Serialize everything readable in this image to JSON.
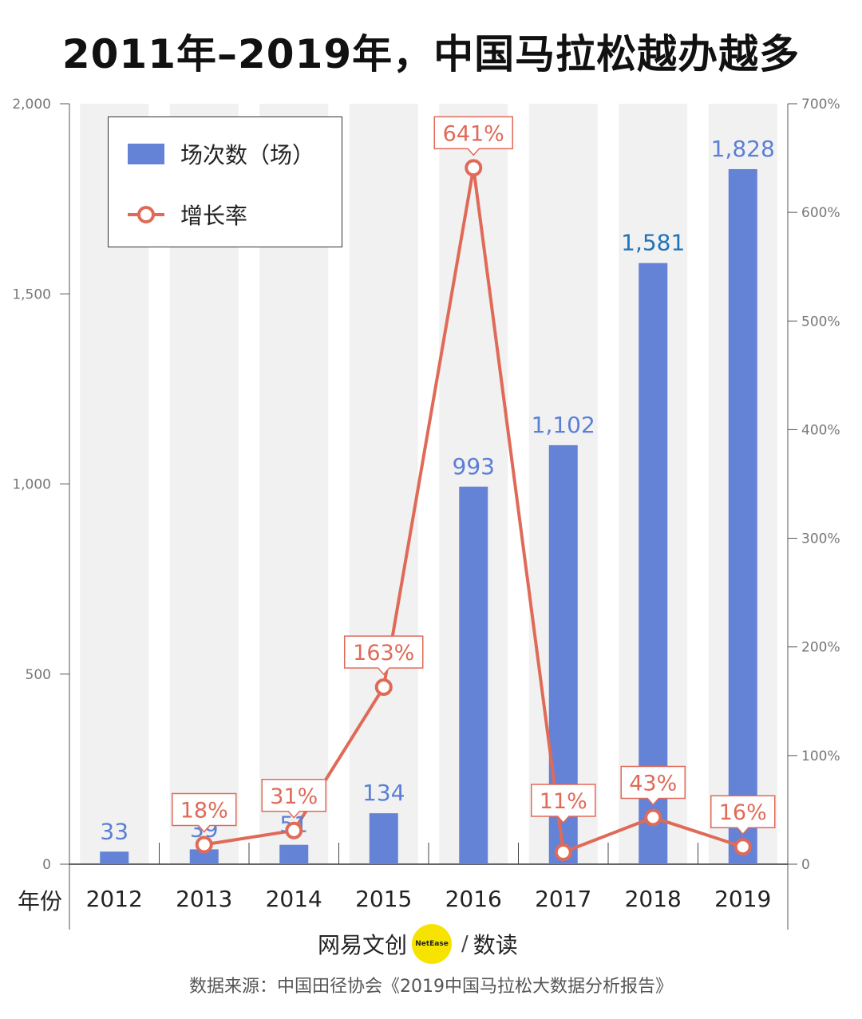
{
  "title": "2011年–2019年，中国马拉松越办越多",
  "chart_data": {
    "type": "bar",
    "categories": [
      "2012",
      "2013",
      "2014",
      "2015",
      "2016",
      "2017",
      "2018",
      "2019"
    ],
    "series": [
      {
        "name": "场次数（场）",
        "type": "bar",
        "axis": "left",
        "values": [
          33,
          39,
          51,
          134,
          993,
          1102,
          1581,
          1828
        ],
        "labels": [
          "33",
          "39",
          "51",
          "134",
          "993",
          "1,102",
          "1,581",
          "1,828"
        ]
      },
      {
        "name": "增长率",
        "type": "line",
        "axis": "right",
        "values": [
          null,
          18,
          31,
          163,
          641,
          11,
          43,
          16
        ],
        "labels": [
          "",
          "18%",
          "31%",
          "163%",
          "641%",
          "11%",
          "43%",
          "16%"
        ]
      }
    ],
    "left_axis": {
      "min": 0,
      "max": 2000,
      "ticks": [
        0,
        500,
        1000,
        1500,
        2000
      ],
      "tick_labels": [
        "0",
        "500",
        "1,000",
        "1,500",
        "2,000"
      ]
    },
    "right_axis": {
      "min": 0,
      "max": 700,
      "ticks": [
        0,
        100,
        200,
        300,
        400,
        500,
        600,
        700
      ],
      "tick_labels": [
        "0",
        "100%",
        "200%",
        "300%",
        "400%",
        "500%",
        "600%",
        "700%"
      ]
    },
    "xlabel": "年份",
    "legend_position": "top-left",
    "colors": {
      "bar": "#6482d6",
      "line": "#e06a58",
      "band": "#f1f1f1",
      "bar_label": "#5b7fd6",
      "bar_label_highlight": "#1f73b7"
    }
  },
  "legend": {
    "bar_label": "场次数（场）",
    "line_label": "增长率"
  },
  "brand": {
    "name": "网易文创",
    "logo_text": "NetEase",
    "column": "数读"
  },
  "source": "数据来源：中国田径协会《2019中国马拉松大数据分析报告》"
}
